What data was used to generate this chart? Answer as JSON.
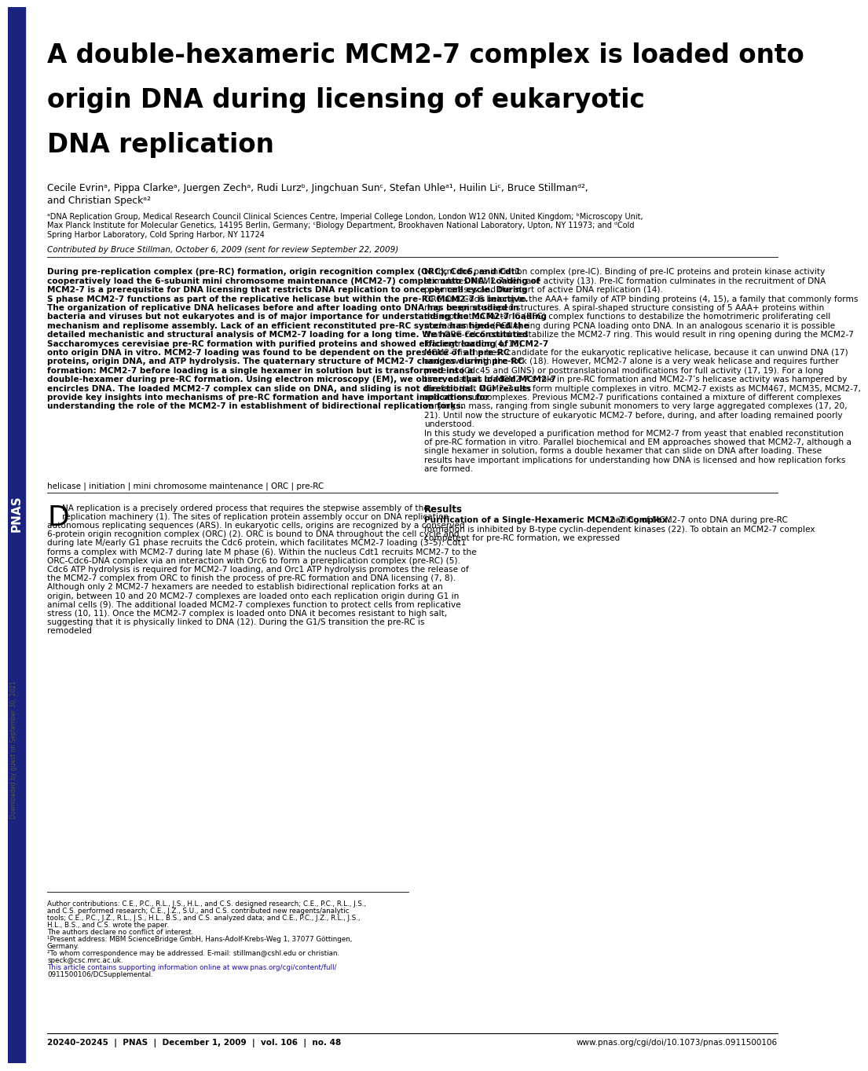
{
  "bg_color": "#ffffff",
  "sidebar_color": "#1a237e",
  "title_line1": "A double-hexameric MCM2-7 complex is loaded onto",
  "title_line2": "origin DNA during licensing of eukaryotic",
  "title_line3": "DNA replication",
  "authors_line1": "Cecile Evrinᵃ, Pippa Clarkeᵃ, Juergen Zechᵃ, Rudi Lurzᵇ, Jingchuan Sunᶜ, Stefan Uhleᵃ¹, Huilin Liᶜ, Bruce Stillmanᵈ²,",
  "authors_line2": "and Christian Speckᵃ²",
  "affiliations_line1": "ᵃDNA Replication Group, Medical Research Council Clinical Sciences Centre, Imperial College London, London W12 0NN, United Kingdom; ᵇMicroscopy Unit,",
  "affiliations_line2": "Max Planck Institute for Molecular Genetics, 14195 Berlin, Germany; ᶜBiology Department, Brookhaven National Laboratory, Upton, NY 11973; and ᵈCold",
  "affiliations_line3": "Spring Harbor Laboratory, Cold Spring Harbor, NY 11724",
  "contributed": "Contributed by Bruce Stillman, October 6, 2009 (sent for review September 22, 2009)",
  "abstract_left": "During pre-replication complex (pre-RC) formation, origin recognition complex (ORC), Cdc6, and Cdt1 cooperatively load the 6-subunit mini chromosome maintenance (MCM2-7) complex onto DNA. Loading of MCM2-7 is a prerequisite for DNA licensing that restricts DNA replication to once per cell cycle. During S phase MCM2-7 functions as part of the replicative helicase but within the pre-RC MCM2-7 is inactive. The organization of replicative DNA helicases before and after loading onto DNA has been studied in bacteria and viruses but not eukaryotes and is of major importance for understanding the MCM2-7 loading mechanism and replisome assembly. Lack of an efficient reconstituted pre-RC system has hindered the detailed mechanistic and structural analysis of MCM2-7 loading for a long time. We have reconstituted Saccharomyces cerevisiae pre-RC formation with purified proteins and showed efficient loading of MCM2-7 onto origin DNA in vitro. MCM2-7 loading was found to be dependent on the presence of all pre-RC proteins, origin DNA, and ATP hydrolysis. The quaternary structure of MCM2-7 changes during pre-RC formation: MCM2-7 before loading is a single hexamer in solution but is transformed into a double-hexamer during pre-RC formation. Using electron microscopy (EM), we observed that loaded MCM2-7 encircles DNA. The loaded MCM2-7 complex can slide on DNA, and sliding is not directional. Our results provide key insights into mechanisms of pre-RC formation and have important implications for understanding the role of the MCM2-7 in establishment of bidirectional replication forks.",
  "abstract_right": "to form the pre-initiation complex (pre-IC). Binding of pre-IC proteins and protein kinase activity stimulates MCM2-7 helicase activity (13). Pre-IC formation culminates in the recruitment of DNA polymerases and the start of active DNA replication (14).\n ORC and Cdc6 belong to the AAA+ family of ATP binding proteins (4, 15), a family that commonly forms ring- or spiral-shaped structures. A spiral-shaped structure consisting of 5 AAA+ proteins within the replication factor C (RFC) complex functions to destabilize the homotrimeric proliferating cell nuclear antigen (PCNA) ring during PCNA loading onto DNA. In an analogous scenario it is possible that ORC-Cdc6 could destabilize the MCM2-7 ring. This would result in ring opening during the MCM2-7 loading reaction (4, 16).\n MCM2-7 is the best candidate for the eukaryotic replicative helicase, because it can unwind DNA (17) and travels with the fork (18). However, MCM2-7 alone is a very weak helicase and requires further proteins (Cdc45 and GINS) or posttranslational modifications for full activity (17, 19). For a long time, analysis of MCM2-7’s role in pre-RC formation and MCM2-7’s helicase activity was hampered by the fact that MCM2-7 can form multiple complexes in vitro. MCM2-7 exists as MCM467, MCM35, MCM2-7, and other subcomplexes. Previous MCM2-7 purifications contained a mixture of different complexes varying in mass, ranging from single subunit monomers to very large aggregated complexes (17, 20, 21). Until now the structure of eukaryotic MCM2-7 before, during, and after loading remained poorly understood.\n In this study we developed a purification method for MCM2-7 from yeast that enabled reconstitution of pre-RC formation in vitro. Parallel biochemical and EM approaches showed that MCM2-7, although a single hexamer in solution, forms a double hexamer that can slide on DNA after loading. These results have important implications for understanding how DNA is licensed and how replication forks are formed.",
  "keywords": "helicase | initiation | mini chromosome maintenance | ORC | pre-RC",
  "body_col1": "NA replication is a precisely ordered process that requires the stepwise assembly of the replication machinery (1). The sites of replication protein assembly occur on DNA replication origins or autonomous replicating sequences (ARS). In eukaryotic cells, origins are recognized by a conserved 6-protein origin recognition complex (ORC) (2). ORC is bound to DNA throughout the cell cycle and during late M/early G1 phase recruits the Cdc6 protein, which facilitates MCM2-7 loading (3–5). Cdt1 forms a complex with MCM2-7 during late M phase (6). Within the nucleus Cdt1 recruits MCM2-7 to the ORC-Cdc6-DNA complex via an interaction with Orc6 to form a prereplication complex (pre-RC) (5). Cdc6 ATP hydrolysis is required for MCM2-7 loading, and Orc1 ATP hydrolysis promotes the release of the MCM2-7 complex from ORC to finish the process of pre-RC formation and DNA licensing (7, 8). Although only 2 MCM2-7 hexamers are needed to establish bidirectional replication forks at an origin, between 10 and 20 MCM2-7 complexes are loaded onto each replication origin during G1 in animal cells (9). The additional loaded MCM2-7 complexes function to protect cells from replicative stress (10, 11). Once the MCM2-7 complex is loaded onto DNA it becomes resistant to high salt, suggesting that it is physically linked to DNA (12). During the G1/S transition the pre-RC is remodeled",
  "results_header": "Results",
  "purif_bold": "Purification of a Single-Hexameric MCM2-7 Complex.",
  "purif_rest": " Loading of MCM2-7 onto DNA during pre-RC formation is inhibited by B-type cyclin-dependent kinases (22). To obtain an MCM2-7 complex competent for pre-RC formation, we expressed",
  "fn_line1": "Author contributions: C.E., P.C., R.L., J.S., H.L., and C.S. designed research; C.E., P.C., R.L., J.S.,",
  "fn_line2": "and C.S. performed research; C.E., J.Z., S.U., and C.S. contributed new reagents/analytic",
  "fn_line3": "tools; C.E., P.C., J.Z., R.L., J.S., H.L., B.S., and C.S. analyzed data; and C.E., P.C., J.Z., R.L., J.S.,",
  "fn_line4": "H.L., B.S., and C.S. wrote the paper.",
  "fn_line5": "The authors declare no conflict of interest.",
  "fn_line6": "¹Present address: MBM ScienceBridge GmbH, Hans-Adolf-Krebs-Weg 1, 37077 Göttingen,",
  "fn_line7": "Germany.",
  "fn_line8": "²To whom correspondence may be addressed. E-mail: stillman@cshl.edu or christian.",
  "fn_line9": "speck@csc.mrc.ac.uk.",
  "fn_line10": "This article contains supporting information online at www.pnas.org/cgi/content/full/",
  "fn_line11": "0911500106/DCSupplemental.",
  "footer_left": "20240–20245  |  PNAS  |  December 1, 2009  |  vol. 106  |  no. 48",
  "footer_right": "www.pnas.org/cgi/doi/10.1073/pnas.0911500106",
  "watermark": "Downloaded by guest on September 30, 2021",
  "pnas_sidebar": "PNAS"
}
